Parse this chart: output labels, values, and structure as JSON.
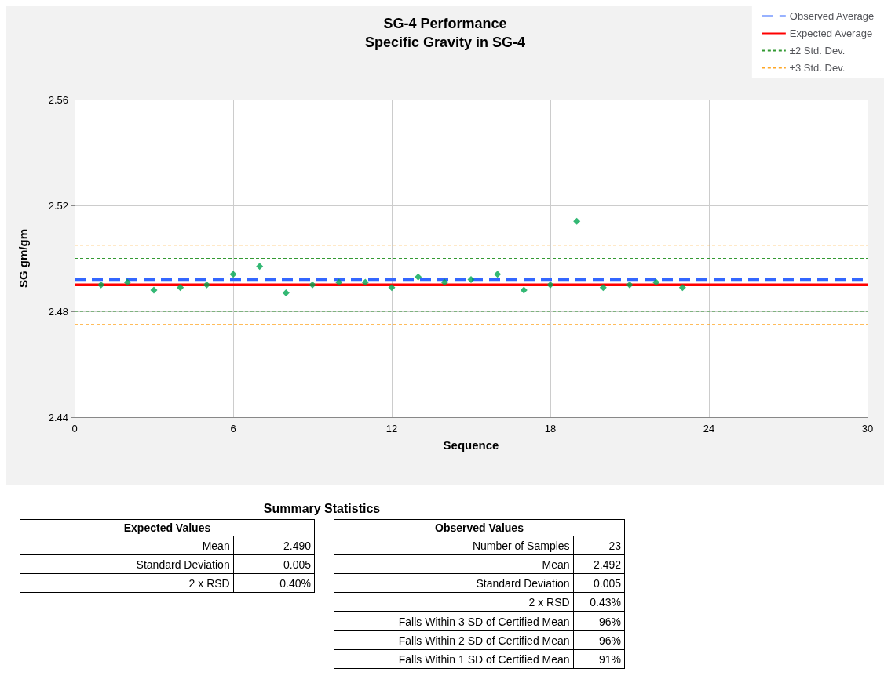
{
  "chart_data": {
    "type": "scatter",
    "title": "SG-4 Performance",
    "subtitle": "Specific Gravity in SG-4",
    "xlabel": "Sequence",
    "ylabel": "SG gm/gm",
    "x": [
      1,
      2,
      3,
      4,
      5,
      6,
      7,
      8,
      9,
      10,
      11,
      12,
      13,
      14,
      15,
      16,
      17,
      18,
      19,
      20,
      21,
      22,
      23
    ],
    "values": [
      2.49,
      2.491,
      2.488,
      2.489,
      2.49,
      2.494,
      2.497,
      2.487,
      2.49,
      2.491,
      2.491,
      2.489,
      2.493,
      2.491,
      2.492,
      2.494,
      2.488,
      2.49,
      2.514,
      2.489,
      2.49,
      2.491,
      2.489
    ],
    "color": "#00a651",
    "marker": "diamond",
    "xlim": [
      0,
      30
    ],
    "xticks": [
      0,
      6,
      12,
      18,
      24,
      30
    ],
    "ylim": [
      2.44,
      2.56
    ],
    "yticks": [
      2.44,
      2.48,
      2.52,
      2.56
    ],
    "grid": true,
    "legend": "top right",
    "ref_lines": [
      {
        "axis": "y",
        "value": 2.492,
        "label": "Observed Average",
        "color": "#3366ff",
        "line_style": "dashed"
      },
      {
        "axis": "y",
        "value": 2.49,
        "label": "Expected Average",
        "color": "#ff0000",
        "line_style": "solid"
      },
      {
        "axis": "y",
        "value": 2.5,
        "label": "±2 Std. Dev.",
        "color": "#339933",
        "line_style": "dotted"
      },
      {
        "axis": "y",
        "value": 2.48,
        "color": "#339933",
        "line_style": "dotted"
      },
      {
        "axis": "y",
        "value": 2.505,
        "label": "±3 Std. Dev.",
        "color": "#ffa726",
        "line_style": "dotted"
      },
      {
        "axis": "y",
        "value": 2.475,
        "color": "#ffa726",
        "line_style": "dotted"
      }
    ],
    "annotations": [
      "Summary Statistics",
      "Expected Values",
      "Mean",
      "2.490",
      "Standard Deviation",
      "0.005",
      "2 x RSD",
      "0.40%",
      "Observed Values",
      "Number of Samples",
      "23",
      "Mean",
      "2.492",
      "Standard Deviation",
      "0.005",
      "2 x RSD",
      "0.43%",
      "Falls Within 3 SD of Certified Mean",
      "96%",
      "Falls Within 2 SD of Certified Mean",
      "96%",
      "Falls Within 1 SD of Certified Mean",
      "91%"
    ]
  }
}
